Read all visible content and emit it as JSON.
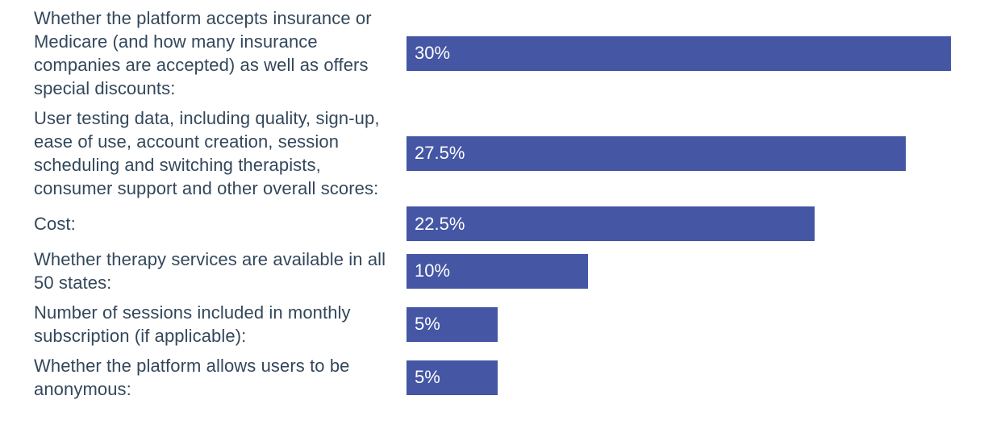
{
  "chart_data": {
    "type": "bar",
    "orientation": "horizontal",
    "title": "",
    "xlabel": "",
    "ylabel": "",
    "xlim": [
      0,
      30
    ],
    "grid": false,
    "legend": false,
    "axis_ticks": false,
    "bar_color": "#4456a4",
    "category_label_color": "#33475b",
    "value_label_color": "#ffffff",
    "categories": [
      "Whether the platform accepts insurance or Medicare (and how many insurance companies are accepted) as well as offers special discounts:",
      "User testing data, including quality, sign-up, ease of use, account creation, session scheduling and switching therapists, consumer support and other overall scores:",
      "Cost:",
      "Whether therapy services are available in all 50 states:",
      "Number of sessions included in monthly subscription (if applicable):",
      "Whether the platform allows users to be anonymous:"
    ],
    "values": [
      30,
      27.5,
      22.5,
      10,
      5,
      5
    ],
    "value_labels": [
      "30%",
      "27.5%",
      "22.5%",
      "10%",
      "5%",
      "5%"
    ]
  }
}
